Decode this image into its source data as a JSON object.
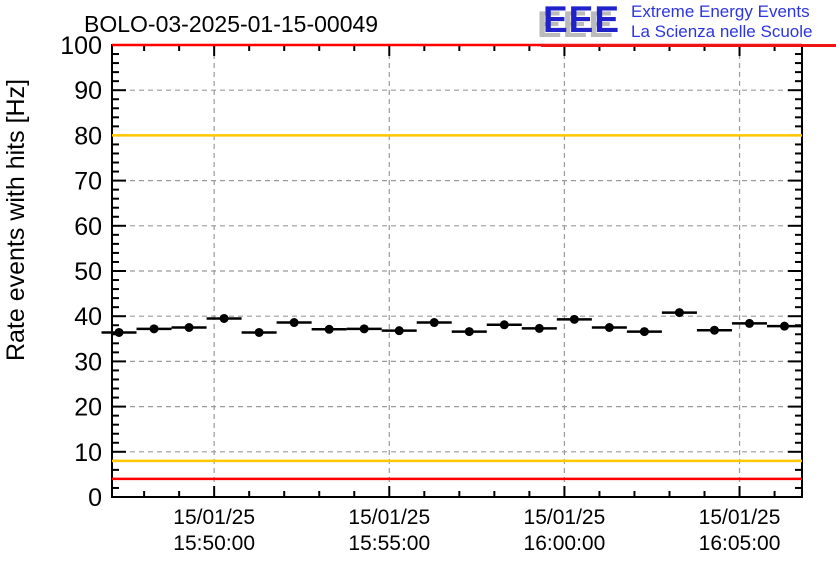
{
  "header": {
    "title": "BOLO-03-2025-01-15-00049",
    "logo": {
      "acronym": "EEE",
      "tagline_line1": "Extreme Energy Events",
      "tagline_line2": "La Scienza nelle Scuole",
      "acronym_color": "#2222cc",
      "shadow_color": "#bbbbbb",
      "tagline_color": "#2c35e0",
      "underline_color": "#ee1414"
    }
  },
  "chart_data": {
    "type": "scatter",
    "title": "BOLO-03-2025-01-15-00049",
    "xlabel": "",
    "ylabel": "Rate events with hits [Hz]",
    "ylim": [
      0,
      100
    ],
    "y_ticks": [
      0,
      10,
      20,
      30,
      40,
      50,
      60,
      70,
      80,
      90,
      100
    ],
    "y_minor_step": 2,
    "x_range_seconds": [
      0,
      1182
    ],
    "x_minor_step_seconds": 60,
    "x_ticks": [
      {
        "t": 175,
        "lines": [
          "15/01/25",
          "15:50:00"
        ]
      },
      {
        "t": 475,
        "lines": [
          "15/01/25",
          "15:55:00"
        ]
      },
      {
        "t": 775,
        "lines": [
          "15/01/25",
          "16:00:00"
        ]
      },
      {
        "t": 1075,
        "lines": [
          "15/01/25",
          "16:05:00"
        ]
      }
    ],
    "grid": {
      "enabled": true,
      "style": "dashed",
      "color": "#9a9a9a"
    },
    "frame_color": "#000000",
    "thresholds": [
      {
        "value": 100,
        "color": "#ff0000",
        "name": "rate-max-alarm"
      },
      {
        "value": 80,
        "color": "#ffc800",
        "name": "rate-high-warning"
      },
      {
        "value": 8,
        "color": "#ffc800",
        "name": "rate-low-warning"
      },
      {
        "value": 4,
        "color": "#ff0000",
        "name": "rate-min-alarm"
      }
    ],
    "series": [
      {
        "name": "rate-events-with-hits",
        "marker": "filled-circle",
        "color": "#000000",
        "bin_halfwidth_seconds": 30,
        "points": [
          {
            "t": 12,
            "rate": 36.4
          },
          {
            "t": 72,
            "rate": 37.2
          },
          {
            "t": 132,
            "rate": 37.5
          },
          {
            "t": 192,
            "rate": 39.5
          },
          {
            "t": 252,
            "rate": 36.4
          },
          {
            "t": 312,
            "rate": 38.6
          },
          {
            "t": 372,
            "rate": 37.1
          },
          {
            "t": 432,
            "rate": 37.2
          },
          {
            "t": 492,
            "rate": 36.8
          },
          {
            "t": 552,
            "rate": 38.6
          },
          {
            "t": 612,
            "rate": 36.6
          },
          {
            "t": 672,
            "rate": 38.1
          },
          {
            "t": 732,
            "rate": 37.3
          },
          {
            "t": 792,
            "rate": 39.3
          },
          {
            "t": 852,
            "rate": 37.5
          },
          {
            "t": 912,
            "rate": 36.6
          },
          {
            "t": 972,
            "rate": 40.8
          },
          {
            "t": 1032,
            "rate": 36.9
          },
          {
            "t": 1092,
            "rate": 38.4
          },
          {
            "t": 1152,
            "rate": 37.8
          }
        ]
      }
    ]
  }
}
